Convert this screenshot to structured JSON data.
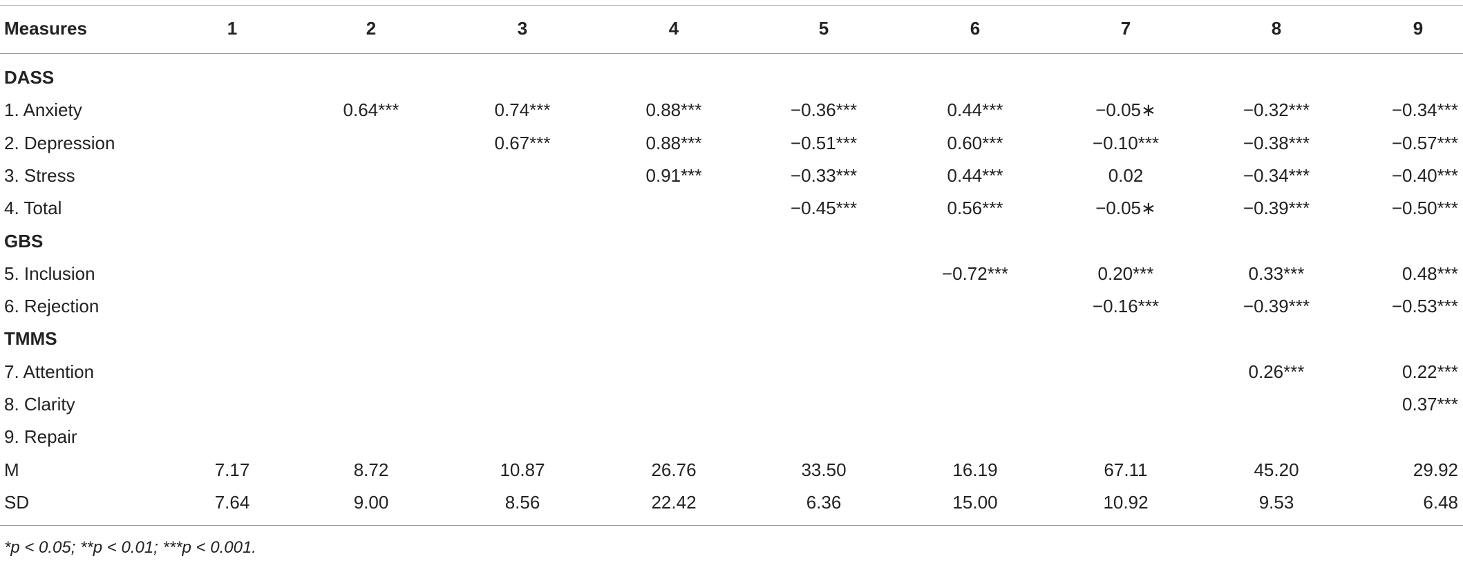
{
  "table": {
    "header": [
      "Measures",
      "1",
      "2",
      "3",
      "4",
      "5",
      "6",
      "7",
      "8",
      "9"
    ],
    "rows": [
      {
        "section": "DASS"
      },
      {
        "label": "1. Anxiety",
        "cells": [
          null,
          "0.64***",
          "0.74***",
          "0.88***",
          "−0.36***",
          "0.44***",
          "−0.05∗",
          "−0.32***",
          "−0.34***"
        ]
      },
      {
        "label": "2. Depression",
        "cells": [
          null,
          null,
          "0.67***",
          "0.88***",
          "−0.51***",
          "0.60***",
          "−0.10***",
          "−0.38***",
          "−0.57***"
        ]
      },
      {
        "label": "3. Stress",
        "cells": [
          null,
          null,
          null,
          "0.91***",
          "−0.33***",
          "0.44***",
          "0.02",
          "−0.34***",
          "−0.40***"
        ]
      },
      {
        "label": "4. Total",
        "cells": [
          null,
          null,
          null,
          null,
          "−0.45***",
          "0.56***",
          "−0.05∗",
          "−0.39***",
          "−0.50***"
        ]
      },
      {
        "section": "GBS"
      },
      {
        "label": "5. Inclusion",
        "cells": [
          null,
          null,
          null,
          null,
          null,
          "−0.72***",
          "0.20***",
          "0.33***",
          "0.48***"
        ]
      },
      {
        "label": "6. Rejection",
        "cells": [
          null,
          null,
          null,
          null,
          null,
          null,
          "−0.16***",
          "−0.39***",
          "−0.53***"
        ]
      },
      {
        "section": "TMMS"
      },
      {
        "label": "7. Attention",
        "cells": [
          null,
          null,
          null,
          null,
          null,
          null,
          null,
          "0.26***",
          "0.22***"
        ]
      },
      {
        "label": "8. Clarity",
        "cells": [
          null,
          null,
          null,
          null,
          null,
          null,
          null,
          null,
          "0.37***"
        ]
      },
      {
        "label": "9. Repair",
        "cells": [
          null,
          null,
          null,
          null,
          null,
          null,
          null,
          null,
          null
        ]
      },
      {
        "label": "M",
        "cells": [
          "7.17",
          "8.72",
          "10.87",
          "26.76",
          "33.50",
          "16.19",
          "67.11",
          "45.20",
          "29.92"
        ]
      },
      {
        "label": "SD",
        "cells": [
          "7.64",
          "9.00",
          "8.56",
          "22.42",
          "6.36",
          "15.00",
          "10.92",
          "9.53",
          "6.48"
        ]
      }
    ]
  },
  "footnote": "*p < 0.05; **p < 0.01; ***p < 0.001."
}
